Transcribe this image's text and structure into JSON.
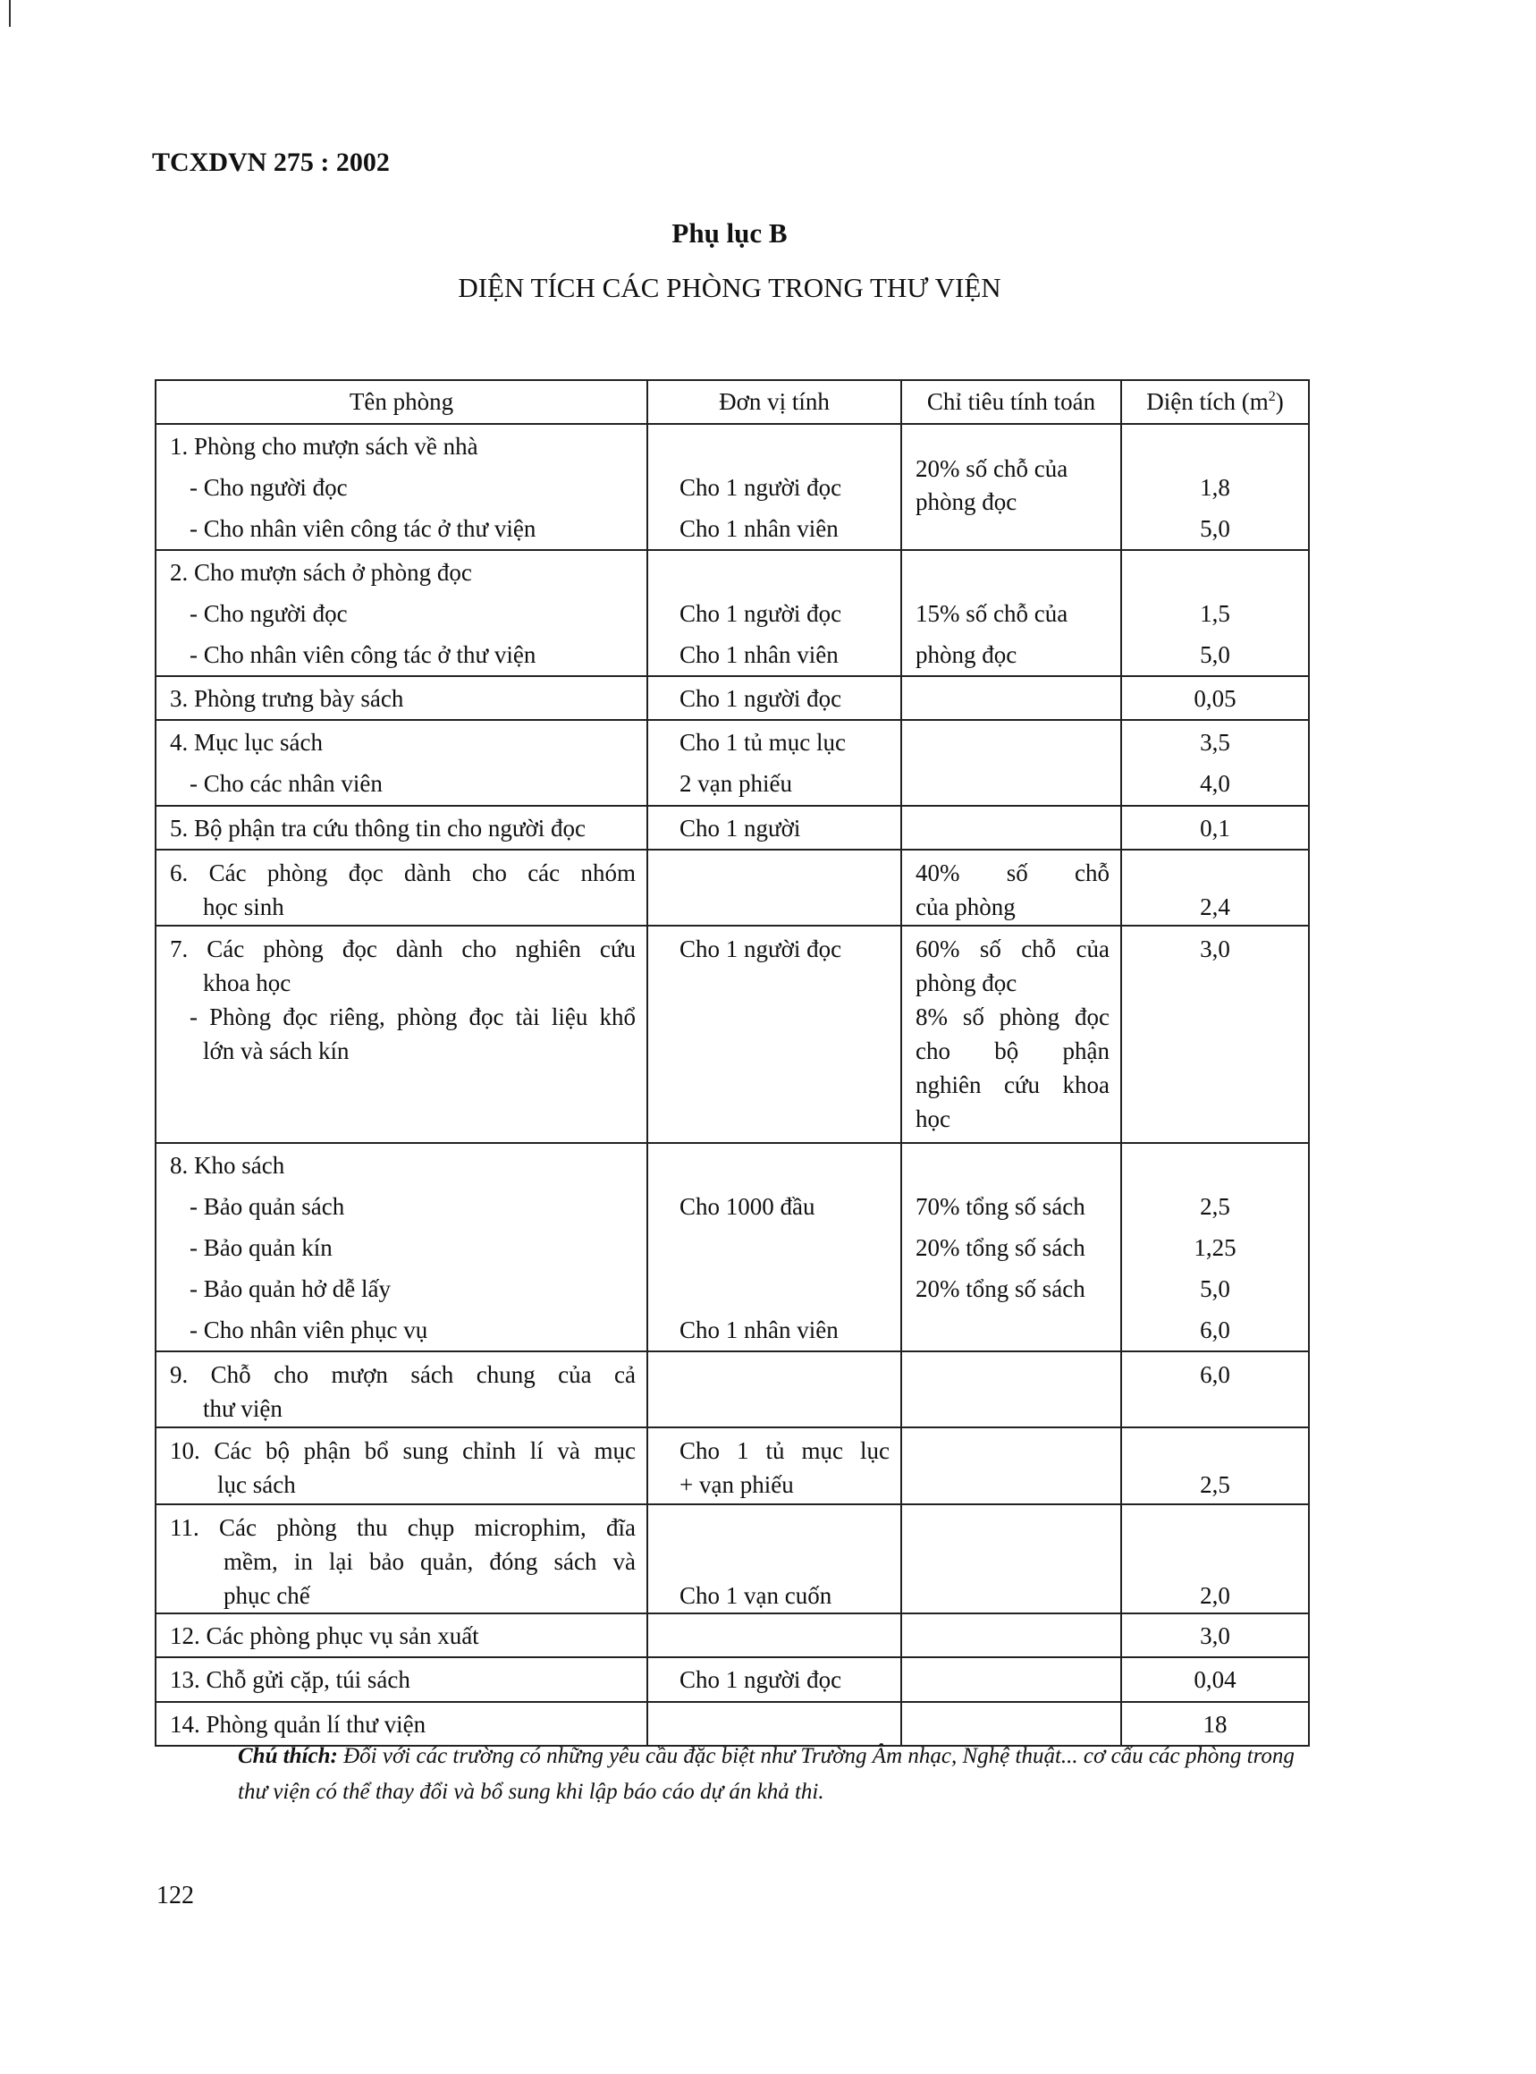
{
  "header": {
    "standard": "TCXDVN 275 : 2002",
    "appendix": "Phụ lục B",
    "title": "DIỆN TÍCH CÁC PHÒNG TRONG THƯ VIỆN"
  },
  "table": {
    "columns": [
      "Tên phòng",
      "Đơn vị tính",
      "Chỉ tiêu tính toán",
      "Diện tích (m",
      "2",
      ")"
    ],
    "rows": [
      {
        "name": [
          "1. Phòng cho mượn sách về nhà",
          "- Cho người đọc",
          "- Cho nhân viên công tác ở thư viện"
        ],
        "unit": [
          "",
          "Cho 1 người đọc",
          "Cho 1 nhân viên"
        ],
        "criteria": [
          "20% số chỗ của",
          "phòng đọc"
        ],
        "area": [
          "",
          "1,8",
          "5,0"
        ]
      },
      {
        "name": [
          "2. Cho mượn sách ở phòng đọc",
          "- Cho người đọc",
          "- Cho nhân viên công tác ở thư viện"
        ],
        "unit": [
          "",
          "Cho 1 người đọc",
          "Cho 1 nhân viên"
        ],
        "criteria": [
          "",
          "15% số chỗ của",
          "phòng đọc"
        ],
        "area": [
          "",
          "1,5",
          "5,0"
        ]
      },
      {
        "name": [
          "3. Phòng trưng bày sách"
        ],
        "unit": [
          "Cho 1 người đọc"
        ],
        "criteria": [],
        "area": [
          "0,05"
        ]
      },
      {
        "name": [
          "4. Mục lục sách",
          "- Cho các nhân viên"
        ],
        "unit": [
          "Cho 1 tủ mục lục",
          "2 vạn phiếu"
        ],
        "criteria": [],
        "area": [
          "3,5",
          "4,0"
        ]
      },
      {
        "name": [
          "5. Bộ phận tra cứu thông tin cho người đọc"
        ],
        "unit": [
          "Cho 1 người"
        ],
        "criteria": [],
        "area": [
          "0,1"
        ]
      },
      {
        "name": [
          "6. Các phòng đọc dành cho các nhóm",
          "học sinh"
        ],
        "unit": [],
        "criteria": [
          "40% số chỗ",
          "của phòng"
        ],
        "area": [
          "",
          "2,4"
        ]
      },
      {
        "name": [
          "7. Các phòng đọc dành cho nghiên cứu",
          "khoa học",
          "- Phòng đọc riêng, phòng đọc tài liệu khổ",
          "lớn và sách kín"
        ],
        "unit": [
          "Cho 1 người đọc"
        ],
        "criteria": [
          "60% số chỗ của",
          "phòng đọc",
          "8% số phòng đọc",
          "cho bộ phận",
          "nghiên cứu khoa",
          "học"
        ],
        "area": [
          "3,0"
        ]
      },
      {
        "name": [
          "8. Kho sách",
          "- Bảo quản sách",
          "- Bảo quản kín",
          "- Bảo quản hở dễ lấy",
          "- Cho nhân viên phục vụ"
        ],
        "unit": [
          "",
          "Cho 1000 đầu",
          "",
          "",
          "Cho 1 nhân viên"
        ],
        "criteria": [
          "",
          "70% tổng số sách",
          "20% tổng số sách",
          "20% tổng số sách"
        ],
        "area": [
          "",
          "2,5",
          "1,25",
          "5,0",
          "6,0"
        ]
      },
      {
        "name": [
          "9. Chỗ cho mượn sách chung của cả",
          "thư viện"
        ],
        "unit": [],
        "criteria": [],
        "area": [
          "6,0"
        ]
      },
      {
        "name": [
          "10. Các bộ phận bổ sung chỉnh lí và mục",
          "lục sách"
        ],
        "unit": [
          "Cho 1 tủ mục lục",
          "+ vạn phiếu"
        ],
        "criteria": [],
        "area": [
          "",
          "2,5"
        ]
      },
      {
        "name": [
          "11. Các phòng thu chụp microphim, đĩa",
          "mềm, in lại bảo quản, đóng sách và",
          "phục chế"
        ],
        "unit": [
          "",
          "",
          "Cho 1 vạn cuốn"
        ],
        "criteria": [],
        "area": [
          "",
          "",
          "2,0"
        ]
      },
      {
        "name": [
          "12. Các phòng phục vụ sản xuất"
        ],
        "unit": [],
        "criteria": [],
        "area": [
          "3,0"
        ]
      },
      {
        "name": [
          "13. Chỗ gửi cặp, túi sách"
        ],
        "unit": [
          "Cho 1 người đọc"
        ],
        "criteria": [],
        "area": [
          "0,04"
        ]
      },
      {
        "name": [
          "14. Phòng quản lí thư viện"
        ],
        "unit": [],
        "criteria": [],
        "area": [
          "18"
        ]
      }
    ]
  },
  "note": {
    "label": "Chú thích:",
    "text": " Đối với các trường có những yêu cầu đặc biệt như Trường Âm nhạc, Nghệ thuật... cơ cấu các phòng trong thư viện có thể thay đổi và bổ sung khi lập báo cáo dự án khả thi."
  },
  "page_number": "122"
}
